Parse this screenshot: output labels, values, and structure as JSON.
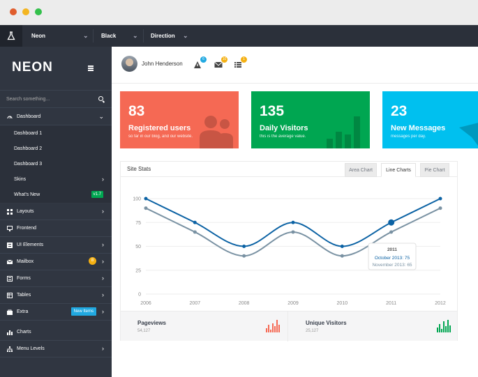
{
  "topnav": {
    "items": [
      {
        "label": "Neon"
      },
      {
        "label": "Black"
      },
      {
        "label": "Direction"
      }
    ]
  },
  "sidebar": {
    "brand": "NEON",
    "search_placeholder": "Search something...",
    "items": [
      {
        "label": "Dashboard",
        "icon": "gauge-icon",
        "expanded": true
      },
      {
        "label": "Dashboard 1",
        "sub": true
      },
      {
        "label": "Dashboard 2",
        "sub": true
      },
      {
        "label": "Dashboard 3",
        "sub": true
      },
      {
        "label": "Skins",
        "sub": true
      },
      {
        "label": "What's New",
        "sub": true,
        "badge": "v1.7"
      },
      {
        "label": "Layouts",
        "icon": "grid-icon"
      },
      {
        "label": "Frontend",
        "icon": "monitor-icon"
      },
      {
        "label": "UI Elements",
        "icon": "layers-icon"
      },
      {
        "label": "Mailbox",
        "icon": "mail-icon",
        "badge": "8"
      },
      {
        "label": "Forms",
        "icon": "forms-icon"
      },
      {
        "label": "Tables",
        "icon": "table-icon"
      },
      {
        "label": "Extra",
        "icon": "bag-icon",
        "badge": "New Items"
      },
      {
        "label": "Charts",
        "icon": "bar-chart-icon"
      },
      {
        "label": "Menu Levels",
        "icon": "sitemap-icon"
      }
    ]
  },
  "userbar": {
    "name": "John Henderson",
    "notifications": [
      {
        "icon": "alert-icon",
        "count": "6",
        "color": "#21a9e1"
      },
      {
        "icon": "envelope-icon",
        "count": "10",
        "color": "#f4b012"
      },
      {
        "icon": "list-icon",
        "count": "1",
        "color": "#f4b012"
      }
    ]
  },
  "tiles": [
    {
      "value": "83",
      "title": "Registered users",
      "subtitle": "so far in our blog, and our website.",
      "color": "#f56954",
      "icon": "users-icon"
    },
    {
      "value": "135",
      "title": "Daily Visitors",
      "subtitle": "this is the average value.",
      "color": "#00a651",
      "icon": "bar-chart-icon"
    },
    {
      "value": "23",
      "title": "New Messages",
      "subtitle": "messages per day.",
      "color": "#00c0ef",
      "icon": "paper-plane-icon"
    }
  ],
  "site_stats": {
    "title": "Site Stats",
    "tabs": [
      "Area Chart",
      "Line Charts",
      "Pie Chart"
    ],
    "active_tab": "Line Charts",
    "tooltip": {
      "year": "2011",
      "line1": "October 2013: 75",
      "line2": "November 2013: 65"
    },
    "footer": [
      {
        "label": "Pageviews",
        "value": "54,127",
        "color": "#f56954"
      },
      {
        "label": "Unique Visitors",
        "value": "25,127",
        "color": "#00a651"
      }
    ]
  },
  "chart_data": {
    "type": "line",
    "x": [
      "2006",
      "2007",
      "2008",
      "2009",
      "2010",
      "2011",
      "2012"
    ],
    "ylim": [
      0,
      100
    ],
    "yticks": [
      0,
      25,
      50,
      75,
      100
    ],
    "grid": true,
    "series": [
      {
        "values": [
          100,
          75,
          50,
          75,
          50,
          75,
          100
        ],
        "color": "#0b62a4"
      },
      {
        "values": [
          90,
          65,
          40,
          65,
          40,
          65,
          90
        ],
        "color": "#7a92a3"
      }
    ]
  }
}
